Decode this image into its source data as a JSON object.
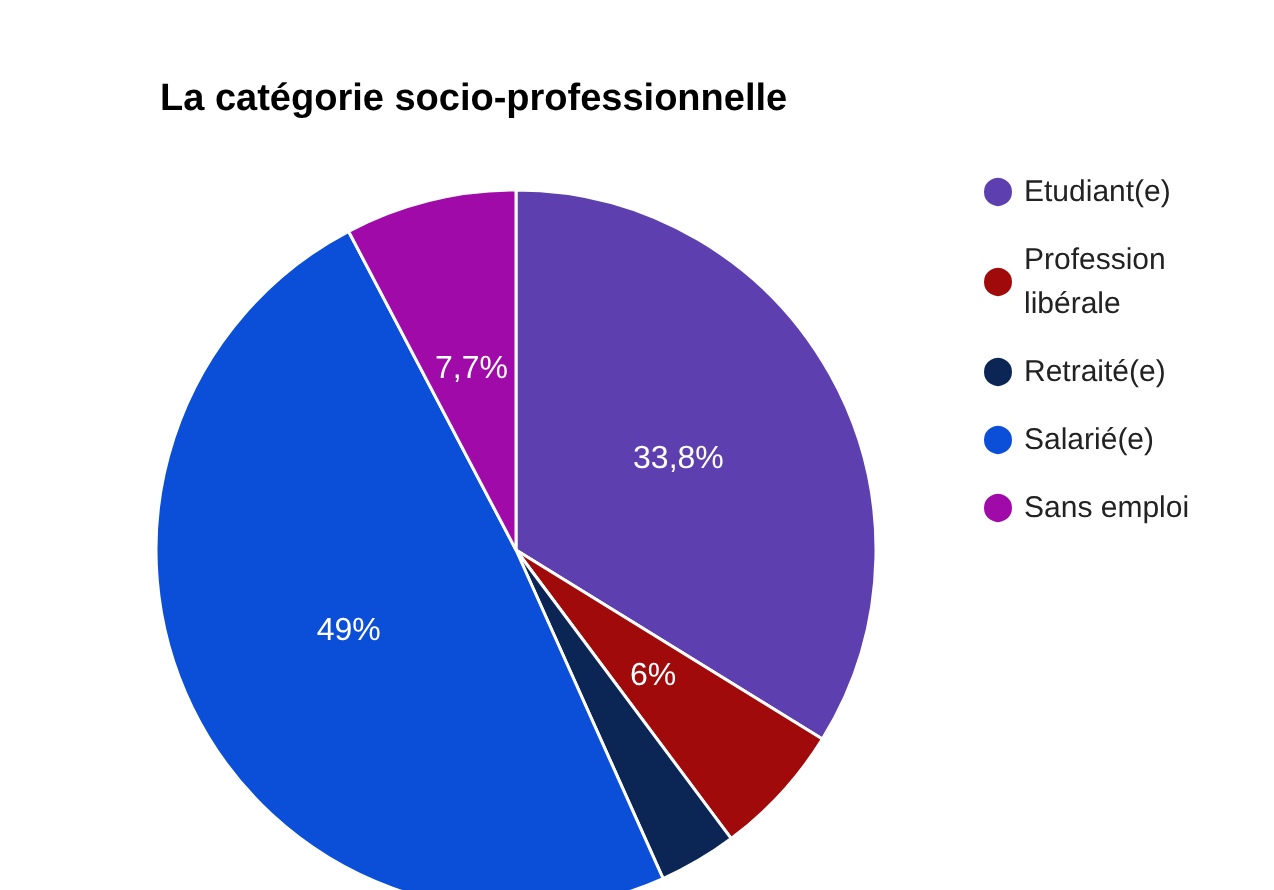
{
  "chart_data": {
    "type": "pie",
    "title": "La catégorie socio-professionnelle",
    "categories": [
      "Etudiant(e)",
      "Profession libérale",
      "Retraité(e)",
      "Salarié(e)",
      "Sans emploi"
    ],
    "values": [
      33.8,
      6,
      3.5,
      49,
      7.7
    ],
    "colors": [
      "#5e3fb0",
      "#a00a0a",
      "#0b2655",
      "#0b4ed8",
      "#a00aa8"
    ],
    "value_labels": [
      "33,8%",
      "6%",
      null,
      "49%",
      "7,7%"
    ],
    "legend": "right"
  }
}
